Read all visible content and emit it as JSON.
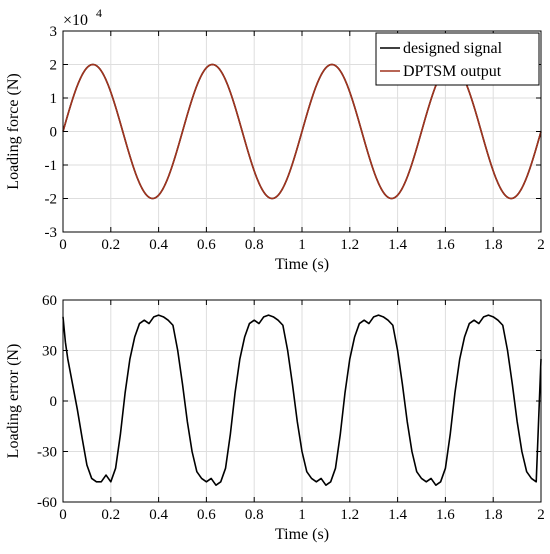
{
  "chart_data": [
    {
      "type": "line",
      "xlabel": "Time (s)",
      "ylabel": "Loading force (N)",
      "y_exponent_label": "×10",
      "y_exponent_power": "4",
      "xlim": [
        0,
        2
      ],
      "ylim": [
        -30000,
        30000
      ],
      "x_ticks": [
        0,
        0.2,
        0.4,
        0.6,
        0.8,
        1,
        1.2,
        1.4,
        1.6,
        1.8,
        2
      ],
      "x_tick_labels": [
        "0",
        "0.2",
        "0.4",
        "0.6",
        "0.8",
        "1",
        "1.2",
        "1.4",
        "1.6",
        "1.8",
        "2"
      ],
      "y_ticks": [
        -30000,
        -20000,
        -10000,
        0,
        10000,
        20000,
        30000
      ],
      "y_tick_labels": [
        "-3",
        "-2",
        "-1",
        "0",
        "1",
        "2",
        "3"
      ],
      "grid": true,
      "legend_position": "top-right",
      "series": [
        {
          "name": "designed signal",
          "color": "#000000",
          "function": "sine",
          "amplitude": 20000,
          "frequency": 2,
          "x_start": 0,
          "x_end": 2
        },
        {
          "name": "DPTSM output",
          "color": "#a0341f",
          "function": "sine",
          "amplitude": 20000,
          "frequency": 2,
          "x_start": 0,
          "x_end": 2
        }
      ]
    },
    {
      "type": "line",
      "xlabel": "Time (s)",
      "ylabel": "Loading error (N)",
      "xlim": [
        0,
        2
      ],
      "ylim": [
        -60,
        60
      ],
      "x_ticks": [
        0,
        0.2,
        0.4,
        0.6,
        0.8,
        1,
        1.2,
        1.4,
        1.6,
        1.8,
        2
      ],
      "x_tick_labels": [
        "0",
        "0.2",
        "0.4",
        "0.6",
        "0.8",
        "1",
        "1.2",
        "1.4",
        "1.6",
        "1.8",
        "2"
      ],
      "y_ticks": [
        -60,
        -30,
        0,
        30,
        60
      ],
      "y_tick_labels": [
        "-60",
        "-30",
        "0",
        "30",
        "60"
      ],
      "grid": true,
      "series": [
        {
          "color": "#000000",
          "x": [
            0,
            0.01,
            0.02,
            0.04,
            0.06,
            0.08,
            0.1,
            0.12,
            0.14,
            0.16,
            0.18,
            0.2,
            0.22,
            0.24,
            0.26,
            0.28,
            0.3,
            0.32,
            0.34,
            0.36,
            0.38,
            0.4,
            0.42,
            0.44,
            0.46,
            0.48,
            0.5,
            0.52,
            0.54,
            0.56,
            0.58,
            0.6,
            0.62,
            0.64,
            0.66,
            0.68,
            0.7,
            0.72,
            0.74,
            0.76,
            0.78,
            0.8,
            0.82,
            0.84,
            0.86,
            0.88,
            0.9,
            0.92,
            0.94,
            0.96,
            0.98,
            1.0,
            1.02,
            1.04,
            1.06,
            1.08,
            1.1,
            1.12,
            1.14,
            1.16,
            1.18,
            1.2,
            1.22,
            1.24,
            1.26,
            1.28,
            1.3,
            1.32,
            1.34,
            1.36,
            1.38,
            1.4,
            1.42,
            1.44,
            1.46,
            1.48,
            1.5,
            1.52,
            1.54,
            1.56,
            1.58,
            1.6,
            1.62,
            1.64,
            1.66,
            1.68,
            1.7,
            1.72,
            1.74,
            1.76,
            1.78,
            1.8,
            1.82,
            1.84,
            1.86,
            1.88,
            1.9,
            1.92,
            1.94,
            1.96,
            1.98,
            2.0
          ],
          "y": [
            50,
            35,
            25,
            10,
            -5,
            -22,
            -38,
            -46,
            -48,
            -48,
            -44,
            -48,
            -40,
            -20,
            5,
            25,
            38,
            46,
            48,
            46,
            50,
            51,
            50,
            48,
            45,
            30,
            10,
            -12,
            -30,
            -42,
            -46,
            -48,
            -46,
            -50,
            -48,
            -40,
            -20,
            5,
            25,
            38,
            46,
            48,
            46,
            50,
            51,
            50,
            48,
            45,
            30,
            10,
            -12,
            -30,
            -42,
            -46,
            -48,
            -46,
            -50,
            -48,
            -40,
            -20,
            5,
            25,
            38,
            46,
            48,
            46,
            50,
            51,
            50,
            48,
            45,
            30,
            10,
            -12,
            -30,
            -42,
            -46,
            -48,
            -46,
            -50,
            -48,
            -40,
            -20,
            5,
            25,
            38,
            46,
            48,
            46,
            50,
            51,
            50,
            48,
            45,
            30,
            10,
            -12,
            -30,
            -42,
            -46,
            -48,
            25
          ]
        }
      ]
    }
  ]
}
